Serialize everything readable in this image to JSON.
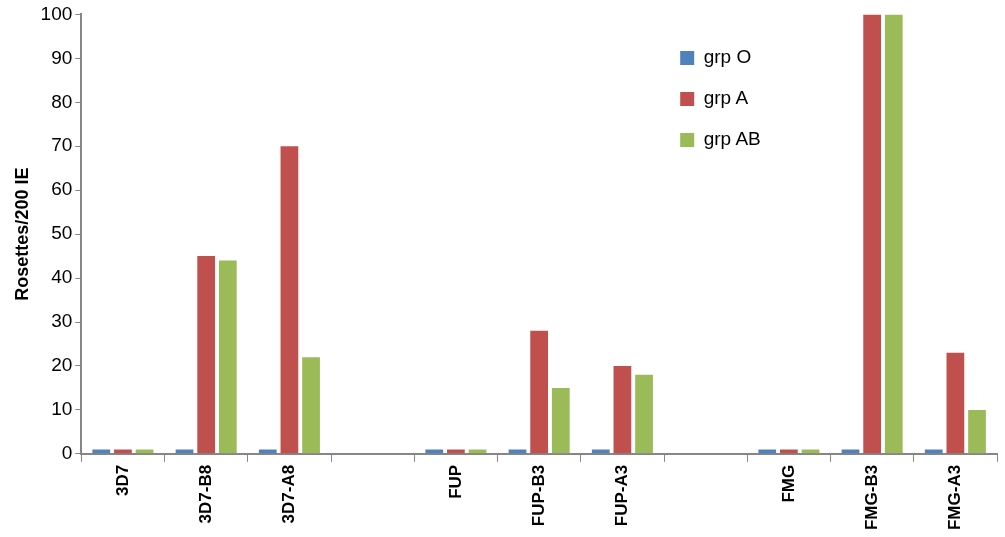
{
  "chart_data": {
    "type": "bar",
    "ylabel": "Rosettes/200 IE",
    "categories": [
      "3D7",
      "3D7-B8",
      "3D7-A8",
      null,
      "FUP",
      "FUP-B3",
      "FUP-A3",
      null,
      "FMG",
      "FMG-B3",
      "FMG-A3"
    ],
    "series": [
      {
        "name": "grp O",
        "color": "#4f81bd",
        "values": [
          1,
          1,
          1,
          null,
          1,
          1,
          1,
          null,
          1,
          1,
          1
        ]
      },
      {
        "name": "grp A",
        "color": "#c0504d",
        "values": [
          1,
          45,
          70,
          null,
          1,
          28,
          20,
          null,
          1,
          100,
          23
        ]
      },
      {
        "name": "grp AB",
        "color": "#9bbb59",
        "values": [
          1,
          44,
          22,
          null,
          1,
          15,
          18,
          null,
          1,
          100,
          10
        ]
      }
    ],
    "ylim": [
      0,
      100
    ],
    "yticks": [
      0,
      10,
      20,
      30,
      40,
      50,
      60,
      70,
      80,
      90,
      100
    ],
    "grid": false,
    "legend": "top right"
  }
}
